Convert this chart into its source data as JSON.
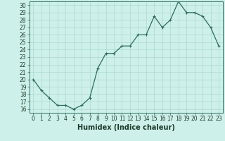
{
  "x": [
    0,
    1,
    2,
    3,
    4,
    5,
    6,
    7,
    8,
    9,
    10,
    11,
    12,
    13,
    14,
    15,
    16,
    17,
    18,
    19,
    20,
    21,
    22,
    23
  ],
  "y": [
    20,
    18.5,
    17.5,
    16.5,
    16.5,
    16,
    16.5,
    17.5,
    21.5,
    23.5,
    23.5,
    24.5,
    24.5,
    26,
    26,
    28.5,
    27,
    28,
    30.5,
    29,
    29,
    28.5,
    27,
    24.5
  ],
  "line_color": "#2e6b5e",
  "marker": "+",
  "marker_color": "#2e6b5e",
  "bg_color": "#cef0ea",
  "grid_color": "#aad8d0",
  "xlabel": "Humidex (Indice chaleur)",
  "xlim": [
    -0.5,
    23.5
  ],
  "ylim": [
    15.5,
    30.5
  ],
  "yticks": [
    16,
    17,
    18,
    19,
    20,
    21,
    22,
    23,
    24,
    25,
    26,
    27,
    28,
    29,
    30
  ],
  "xticks": [
    0,
    1,
    2,
    3,
    4,
    5,
    6,
    7,
    8,
    9,
    10,
    11,
    12,
    13,
    14,
    15,
    16,
    17,
    18,
    19,
    20,
    21,
    22,
    23
  ],
  "xlabel_fontsize": 7,
  "tick_fontsize": 5.5,
  "linewidth": 0.9,
  "markersize": 3
}
